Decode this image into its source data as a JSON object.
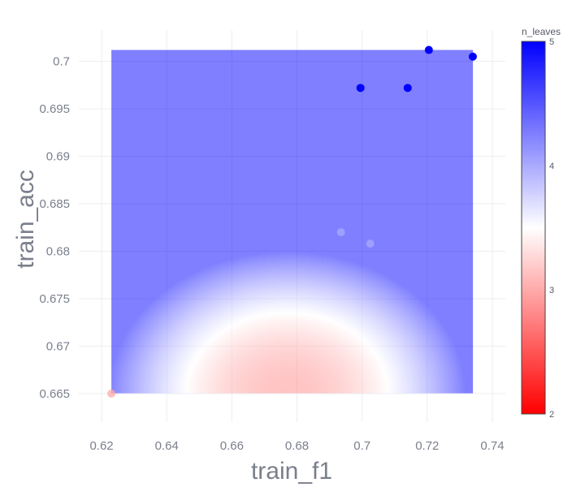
{
  "chart_data": {
    "type": "scatter",
    "title": "",
    "xlabel": "train_f1",
    "ylabel": "train_acc",
    "xlim": [
      0.613,
      0.744
    ],
    "ylim": [
      0.662,
      0.7033
    ],
    "x_ticks": [
      "0.62",
      "0.64",
      "0.66",
      "0.68",
      "0.7",
      "0.72",
      "0.74"
    ],
    "y_ticks": [
      "0.665",
      "0.67",
      "0.675",
      "0.68",
      "0.685",
      "0.69",
      "0.695",
      "0.7"
    ],
    "grid": true,
    "colorbar": {
      "title": "n_leaves",
      "range": [
        2,
        5
      ],
      "ticks": [
        "2",
        "3",
        "4",
        "5"
      ],
      "colorscale": [
        "#ff0000",
        "#ffffff",
        "#0000ff"
      ]
    },
    "surface": {
      "x_range": [
        0.623,
        0.734
      ],
      "y_range": [
        0.665,
        0.7012
      ],
      "peak_value_min": 2.8,
      "peak_x": 0.677,
      "peak_y": 0.665
    },
    "points": [
      {
        "x": 0.623,
        "y": 0.665,
        "n_leaves": 3
      },
      {
        "x": 0.6935,
        "y": 0.682,
        "n_leaves": 4
      },
      {
        "x": 0.7025,
        "y": 0.6808,
        "n_leaves": 4
      },
      {
        "x": 0.6995,
        "y": 0.6972,
        "n_leaves": 5
      },
      {
        "x": 0.714,
        "y": 0.6972,
        "n_leaves": 5
      },
      {
        "x": 0.7205,
        "y": 0.7012,
        "n_leaves": 5
      },
      {
        "x": 0.734,
        "y": 0.7005,
        "n_leaves": 5
      }
    ]
  }
}
